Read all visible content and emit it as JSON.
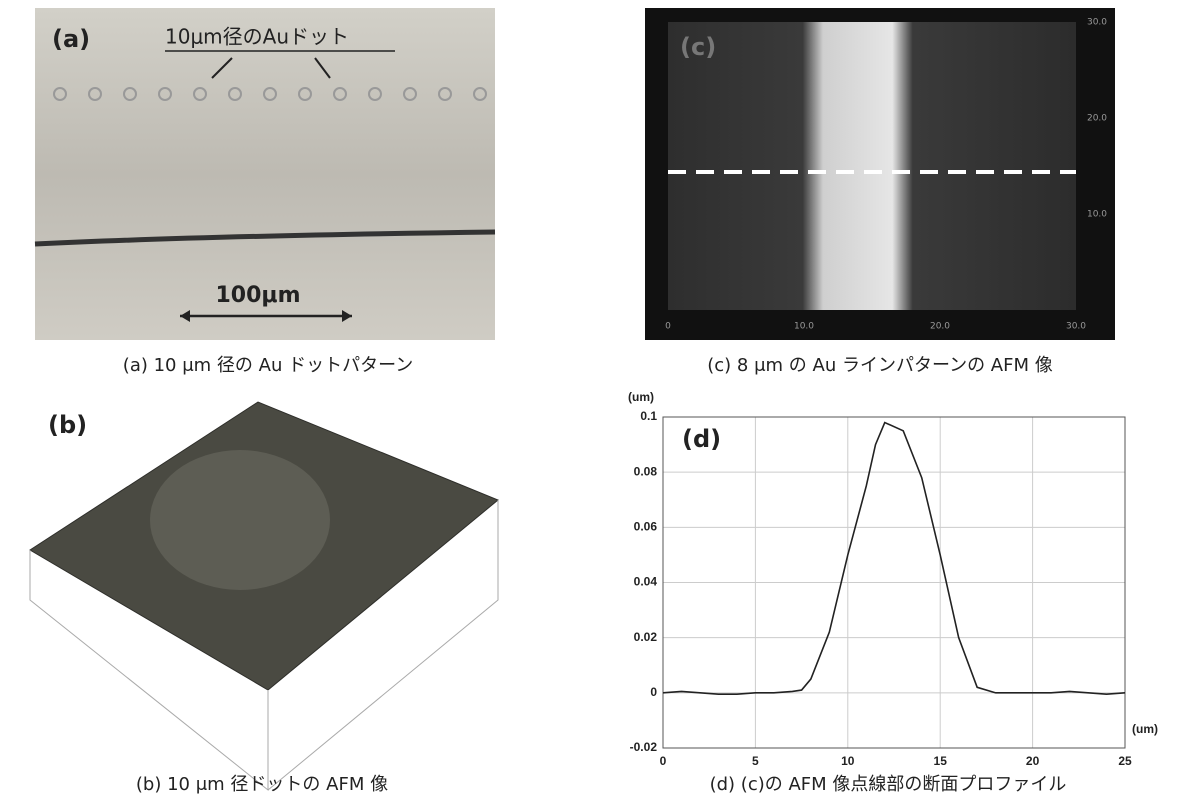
{
  "panel_a": {
    "label": "(a)",
    "annotation": "10μm径のAuドット",
    "scale_bar": "100μm",
    "caption": "(a) 10 μm 径の Au ドットパターン"
  },
  "panel_b": {
    "label": "(b)",
    "caption": "(b) 10 μm 径ドットの AFM 像"
  },
  "panel_c": {
    "label": "(c)",
    "bottom_axis": [
      "0",
      "10.0",
      "20.0",
      "30.0"
    ],
    "right_axis": [
      "30.0",
      "20.0",
      "10.0"
    ],
    "caption": "(c) 8 μm の Au ラインパターンの AFM 像"
  },
  "chart_data": {
    "type": "line",
    "title": "(d)",
    "y_label": "(um)",
    "x_label": "(um)",
    "caption": "(d) (c)の AFM 像点線部の断面プロファイル",
    "x": [
      0,
      1,
      2,
      3,
      4,
      5,
      6,
      7,
      7.5,
      8,
      9,
      10,
      11,
      11.5,
      12,
      13,
      14,
      15,
      16,
      17,
      18,
      19,
      20,
      21,
      22,
      23,
      24,
      25
    ],
    "values": [
      0,
      0.0005,
      0,
      -0.0005,
      -0.0005,
      0,
      0,
      0.0005,
      0.001,
      0.005,
      0.022,
      0.05,
      0.075,
      0.09,
      0.098,
      0.095,
      0.078,
      0.05,
      0.02,
      0.002,
      0,
      0,
      0,
      0,
      0.0005,
      0,
      -0.0005,
      0
    ],
    "color": "#222222",
    "xlim": [
      0,
      25
    ],
    "ylim": [
      -0.02,
      0.1
    ],
    "xticks": [
      0,
      5,
      10,
      15,
      20,
      25
    ],
    "yticks": [
      -0.02,
      0,
      0.02,
      0.04,
      0.06,
      0.08,
      0.1
    ],
    "grid": true
  }
}
